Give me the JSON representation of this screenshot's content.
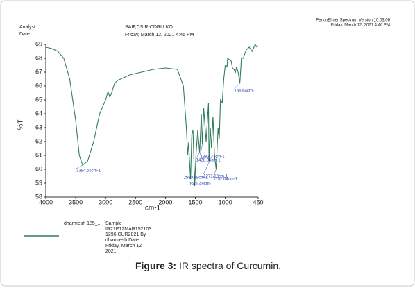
{
  "header": {
    "analyst": "Analyst",
    "date": "Date",
    "lab": "SAIF,CSIR-CDRI,LKO",
    "lab_date": "Friday, March 12, 2021 4:46 PM",
    "software": "PerkinElmer Spectrum Version 10.03.06",
    "software_date": "Friday, March 12, 2021 4:46 PM"
  },
  "sample_info": [
    "Sample",
    "IR21E12MAR152103",
    "1296 CUR2021 By",
    "dharmesh Date",
    "Friday, March 12",
    "2021"
  ],
  "caption": {
    "label": "Figure 3:",
    "text": "IR spectra of Curcumin."
  },
  "chart_data": {
    "type": "line",
    "x_label": "cm-1",
    "y_label": "%T",
    "xlim": [
      4000,
      450
    ],
    "ylim": [
      58,
      69
    ],
    "xticks": [
      4000,
      3500,
      3000,
      2500,
      2000,
      1500,
      1000,
      450
    ],
    "yticks": [
      58,
      59,
      60,
      61,
      62,
      63,
      64,
      65,
      66,
      67,
      68,
      69
    ],
    "x": [
      4000,
      3900,
      3800,
      3700,
      3600,
      3500,
      3440,
      3384,
      3300,
      3200,
      3100,
      3000,
      2960,
      2930,
      2900,
      2850,
      2800,
      2600,
      2400,
      2200,
      2000,
      1800,
      1700,
      1650,
      1628,
      1610,
      1600,
      1580,
      1560,
      1540,
      1511,
      1490,
      1460,
      1428,
      1400,
      1383,
      1360,
      1320,
      1280,
      1271,
      1250,
      1230,
      1205,
      1180,
      1152,
      1120,
      1100,
      1080,
      1050,
      1025,
      1000,
      970,
      960,
      900,
      880,
      855,
      830,
      810,
      780,
      756,
      730,
      700,
      650,
      600,
      550,
      500,
      470,
      450
    ],
    "series": [
      {
        "name": "dharmesh 185_...",
        "color": "#2e7d5b",
        "values": [
          68.8,
          68.7,
          68.5,
          68.0,
          66.5,
          63.5,
          61.0,
          60.3,
          60.6,
          62.0,
          64.0,
          65.0,
          65.6,
          65.2,
          65.5,
          66.2,
          66.4,
          66.8,
          67.0,
          67.2,
          67.3,
          67.2,
          66.0,
          63.0,
          61.0,
          62.0,
          60.8,
          59.3,
          62.5,
          62.8,
          58.8,
          61.0,
          62.8,
          61.2,
          64.0,
          61.8,
          64.4,
          62.0,
          64.8,
          60.5,
          63.0,
          61.5,
          63.8,
          61.0,
          60.0,
          63.0,
          62.2,
          65.0,
          64.8,
          66.5,
          67.5,
          67.4,
          68.0,
          67.8,
          67.3,
          67.2,
          67.0,
          67.4,
          66.9,
          66.2,
          68.0,
          68.0,
          68.6,
          68.8,
          68.5,
          69.0,
          68.8,
          68.9
        ]
      }
    ],
    "annotations": [
      {
        "text": "3384.55cm-1",
        "x": 3384.55,
        "y": 60.3
      },
      {
        "text": "756.64cm-1",
        "x": 756.64,
        "y": 66.2
      },
      {
        "text": "1580.88cm-1",
        "x": 1580.88,
        "y": 59.3
      },
      {
        "text": "1511.49cm-1",
        "x": 1511.49,
        "y": 58.8
      },
      {
        "text": "1428.96cm-1",
        "x": 1428.96,
        "y": 61.2
      },
      {
        "text": "1383.33cm-1",
        "x": 1383.33,
        "y": 61.8
      },
      {
        "text": "1271.13cm-1",
        "x": 1271.13,
        "y": 60.5
      },
      {
        "text": "1152.64cm-1",
        "x": 1152.64,
        "y": 60.0
      }
    ]
  }
}
